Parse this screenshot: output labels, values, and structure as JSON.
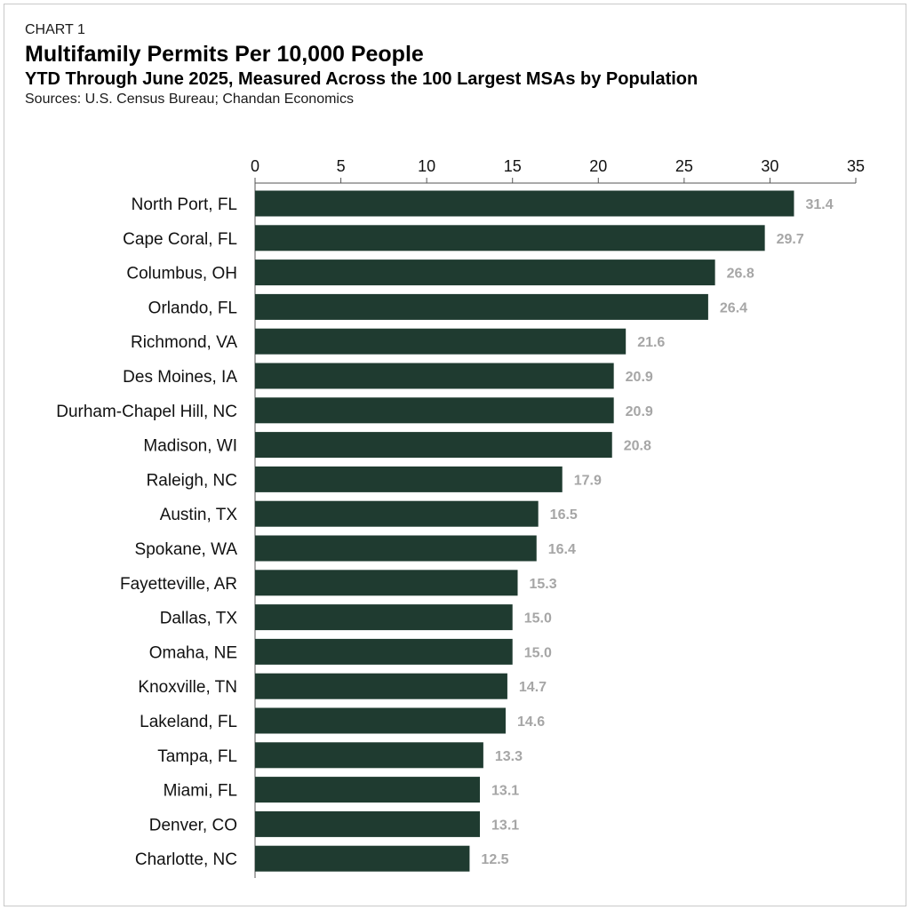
{
  "header": {
    "kicker": "CHART 1",
    "title": "Multifamily Permits Per 10,000 People",
    "subtitle": "YTD Through June 2025, Measured Across the 100 Largest MSAs by Population",
    "sources": "Sources: U.S. Census Bureau; Chandan Economics"
  },
  "colors": {
    "bar": "#1f3b30",
    "value_label": "#a6a6a6",
    "axis": "#555555"
  },
  "chart_data": {
    "type": "bar",
    "orientation": "horizontal",
    "title": "Multifamily Permits Per 10,000 People",
    "subtitle": "YTD Through June 2025, Measured Across the 100 Largest MSAs by Population",
    "xlabel": "",
    "ylabel": "",
    "xlim": [
      0,
      35
    ],
    "x_ticks": [
      0,
      5,
      10,
      15,
      20,
      25,
      30,
      35
    ],
    "x_axis_position": "top",
    "grid": false,
    "legend": "none",
    "categories": [
      "North Port, FL",
      "Cape Coral, FL",
      "Columbus, OH",
      "Orlando, FL",
      "Richmond, VA",
      "Des Moines, IA",
      "Durham-Chapel Hill, NC",
      "Madison, WI",
      "Raleigh, NC",
      "Austin, TX",
      "Spokane, WA",
      "Fayetteville, AR",
      "Dallas, TX",
      "Omaha, NE",
      "Knoxville, TN",
      "Lakeland, FL",
      "Tampa, FL",
      "Miami, FL",
      "Denver, CO",
      "Charlotte, NC"
    ],
    "values": [
      31.4,
      29.7,
      26.8,
      26.4,
      21.6,
      20.9,
      20.9,
      20.8,
      17.9,
      16.5,
      16.4,
      15.3,
      15.0,
      15.0,
      14.7,
      14.6,
      13.3,
      13.1,
      13.1,
      12.5
    ],
    "value_labels": [
      "31.4",
      "29.7",
      "26.8",
      "26.4",
      "21.6",
      "20.9",
      "20.9",
      "20.8",
      "17.9",
      "16.5",
      "16.4",
      "15.3",
      "15.0",
      "15.0",
      "14.7",
      "14.6",
      "13.3",
      "13.1",
      "13.1",
      "12.5"
    ]
  }
}
